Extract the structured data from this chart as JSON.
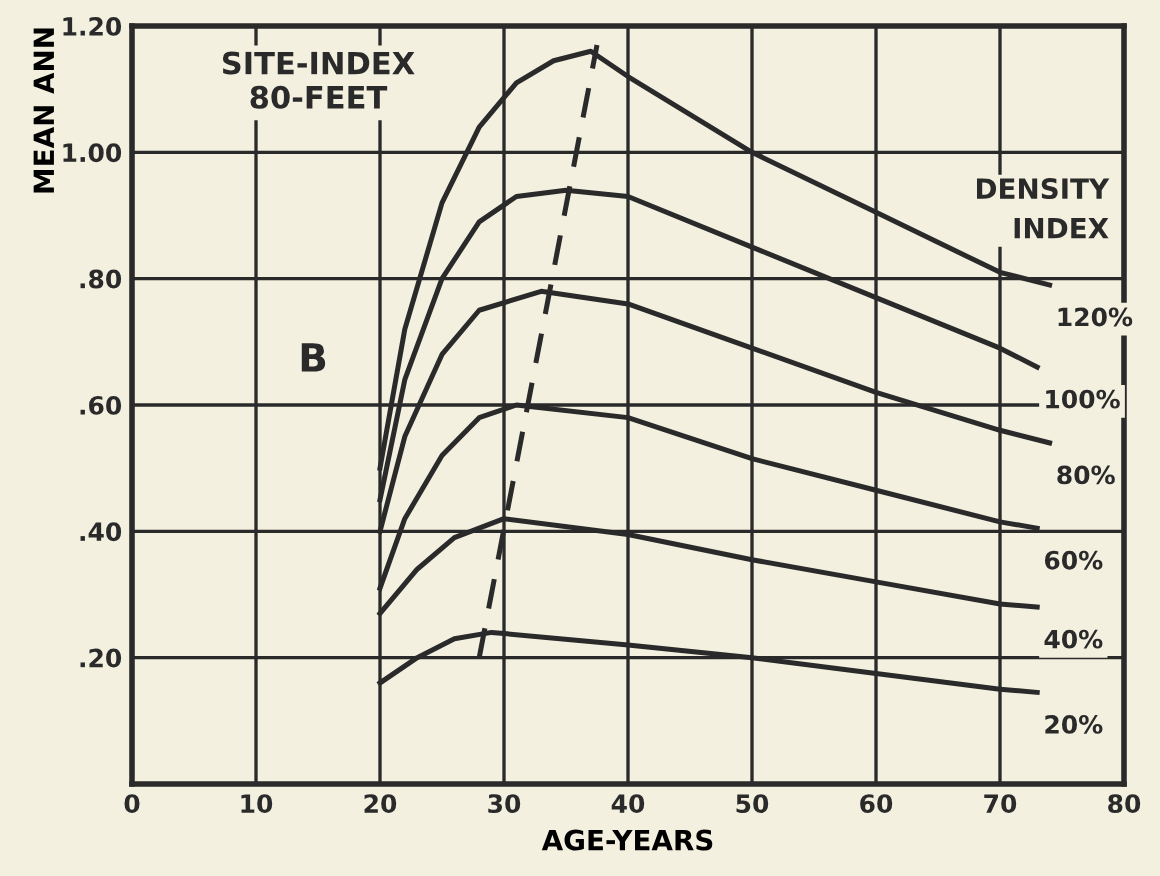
{
  "chart_data": {
    "type": "line",
    "xlabel": "AGE-YEARS",
    "ylabel": "MEAN ANN",
    "legend_title": "DENSITY INDEX",
    "annotations": [
      "SITE-INDEX\n80-FEET",
      "B"
    ],
    "xlim": [
      0,
      80
    ],
    "xticks": [
      0,
      10,
      20,
      30,
      40,
      50,
      60,
      70,
      80
    ],
    "ylim": [
      0,
      1.2
    ],
    "yticks": [
      {
        "value": 0.2,
        "label": ".20"
      },
      {
        "value": 0.4,
        "label": ".40"
      },
      {
        "value": 0.6,
        "label": ".60"
      },
      {
        "value": 0.8,
        "label": ".80"
      },
      {
        "value": 1.0,
        "label": "1.00"
      },
      {
        "value": 1.2,
        "label": "1.20"
      }
    ],
    "grid": true,
    "legend": false,
    "marker": "none",
    "series": [
      {
        "name": "120%",
        "color": "#2a2a2a",
        "line_style": "solid",
        "x": [
          20,
          22,
          25,
          28,
          31,
          34,
          37,
          40,
          50,
          60,
          70,
          74
        ],
        "values": [
          0.5,
          0.72,
          0.92,
          1.04,
          1.11,
          1.145,
          1.16,
          1.12,
          1.0,
          0.905,
          0.81,
          0.79
        ]
      },
      {
        "name": "100%",
        "color": "#2a2a2a",
        "line_style": "solid",
        "x": [
          20,
          22,
          25,
          28,
          31,
          35,
          40,
          50,
          60,
          70,
          73
        ],
        "values": [
          0.45,
          0.64,
          0.8,
          0.89,
          0.93,
          0.94,
          0.93,
          0.85,
          0.77,
          0.69,
          0.66
        ]
      },
      {
        "name": "80%",
        "color": "#2a2a2a",
        "line_style": "solid",
        "x": [
          20,
          22,
          25,
          28,
          33,
          40,
          50,
          60,
          70,
          74
        ],
        "values": [
          0.4,
          0.55,
          0.68,
          0.75,
          0.78,
          0.76,
          0.69,
          0.62,
          0.56,
          0.54
        ]
      },
      {
        "name": "60%",
        "color": "#2a2a2a",
        "line_style": "solid",
        "x": [
          20,
          22,
          25,
          28,
          31,
          40,
          50,
          60,
          70,
          73
        ],
        "values": [
          0.31,
          0.42,
          0.52,
          0.58,
          0.6,
          0.58,
          0.515,
          0.465,
          0.415,
          0.405
        ]
      },
      {
        "name": "40%",
        "color": "#2a2a2a",
        "line_style": "solid",
        "x": [
          20,
          23,
          26,
          30,
          40,
          50,
          60,
          70,
          73
        ],
        "values": [
          0.27,
          0.34,
          0.39,
          0.42,
          0.395,
          0.355,
          0.32,
          0.285,
          0.28
        ]
      },
      {
        "name": "20%",
        "color": "#2a2a2a",
        "line_style": "solid",
        "x": [
          20,
          23,
          26,
          29,
          40,
          50,
          60,
          70,
          73
        ],
        "values": [
          0.16,
          0.2,
          0.23,
          0.24,
          0.22,
          0.2,
          0.175,
          0.15,
          0.145
        ]
      },
      {
        "color": "#2a2a2a",
        "line_style": "dashed",
        "x": [
          28,
          37.5
        ],
        "values": [
          0.2,
          1.17
        ]
      }
    ]
  }
}
